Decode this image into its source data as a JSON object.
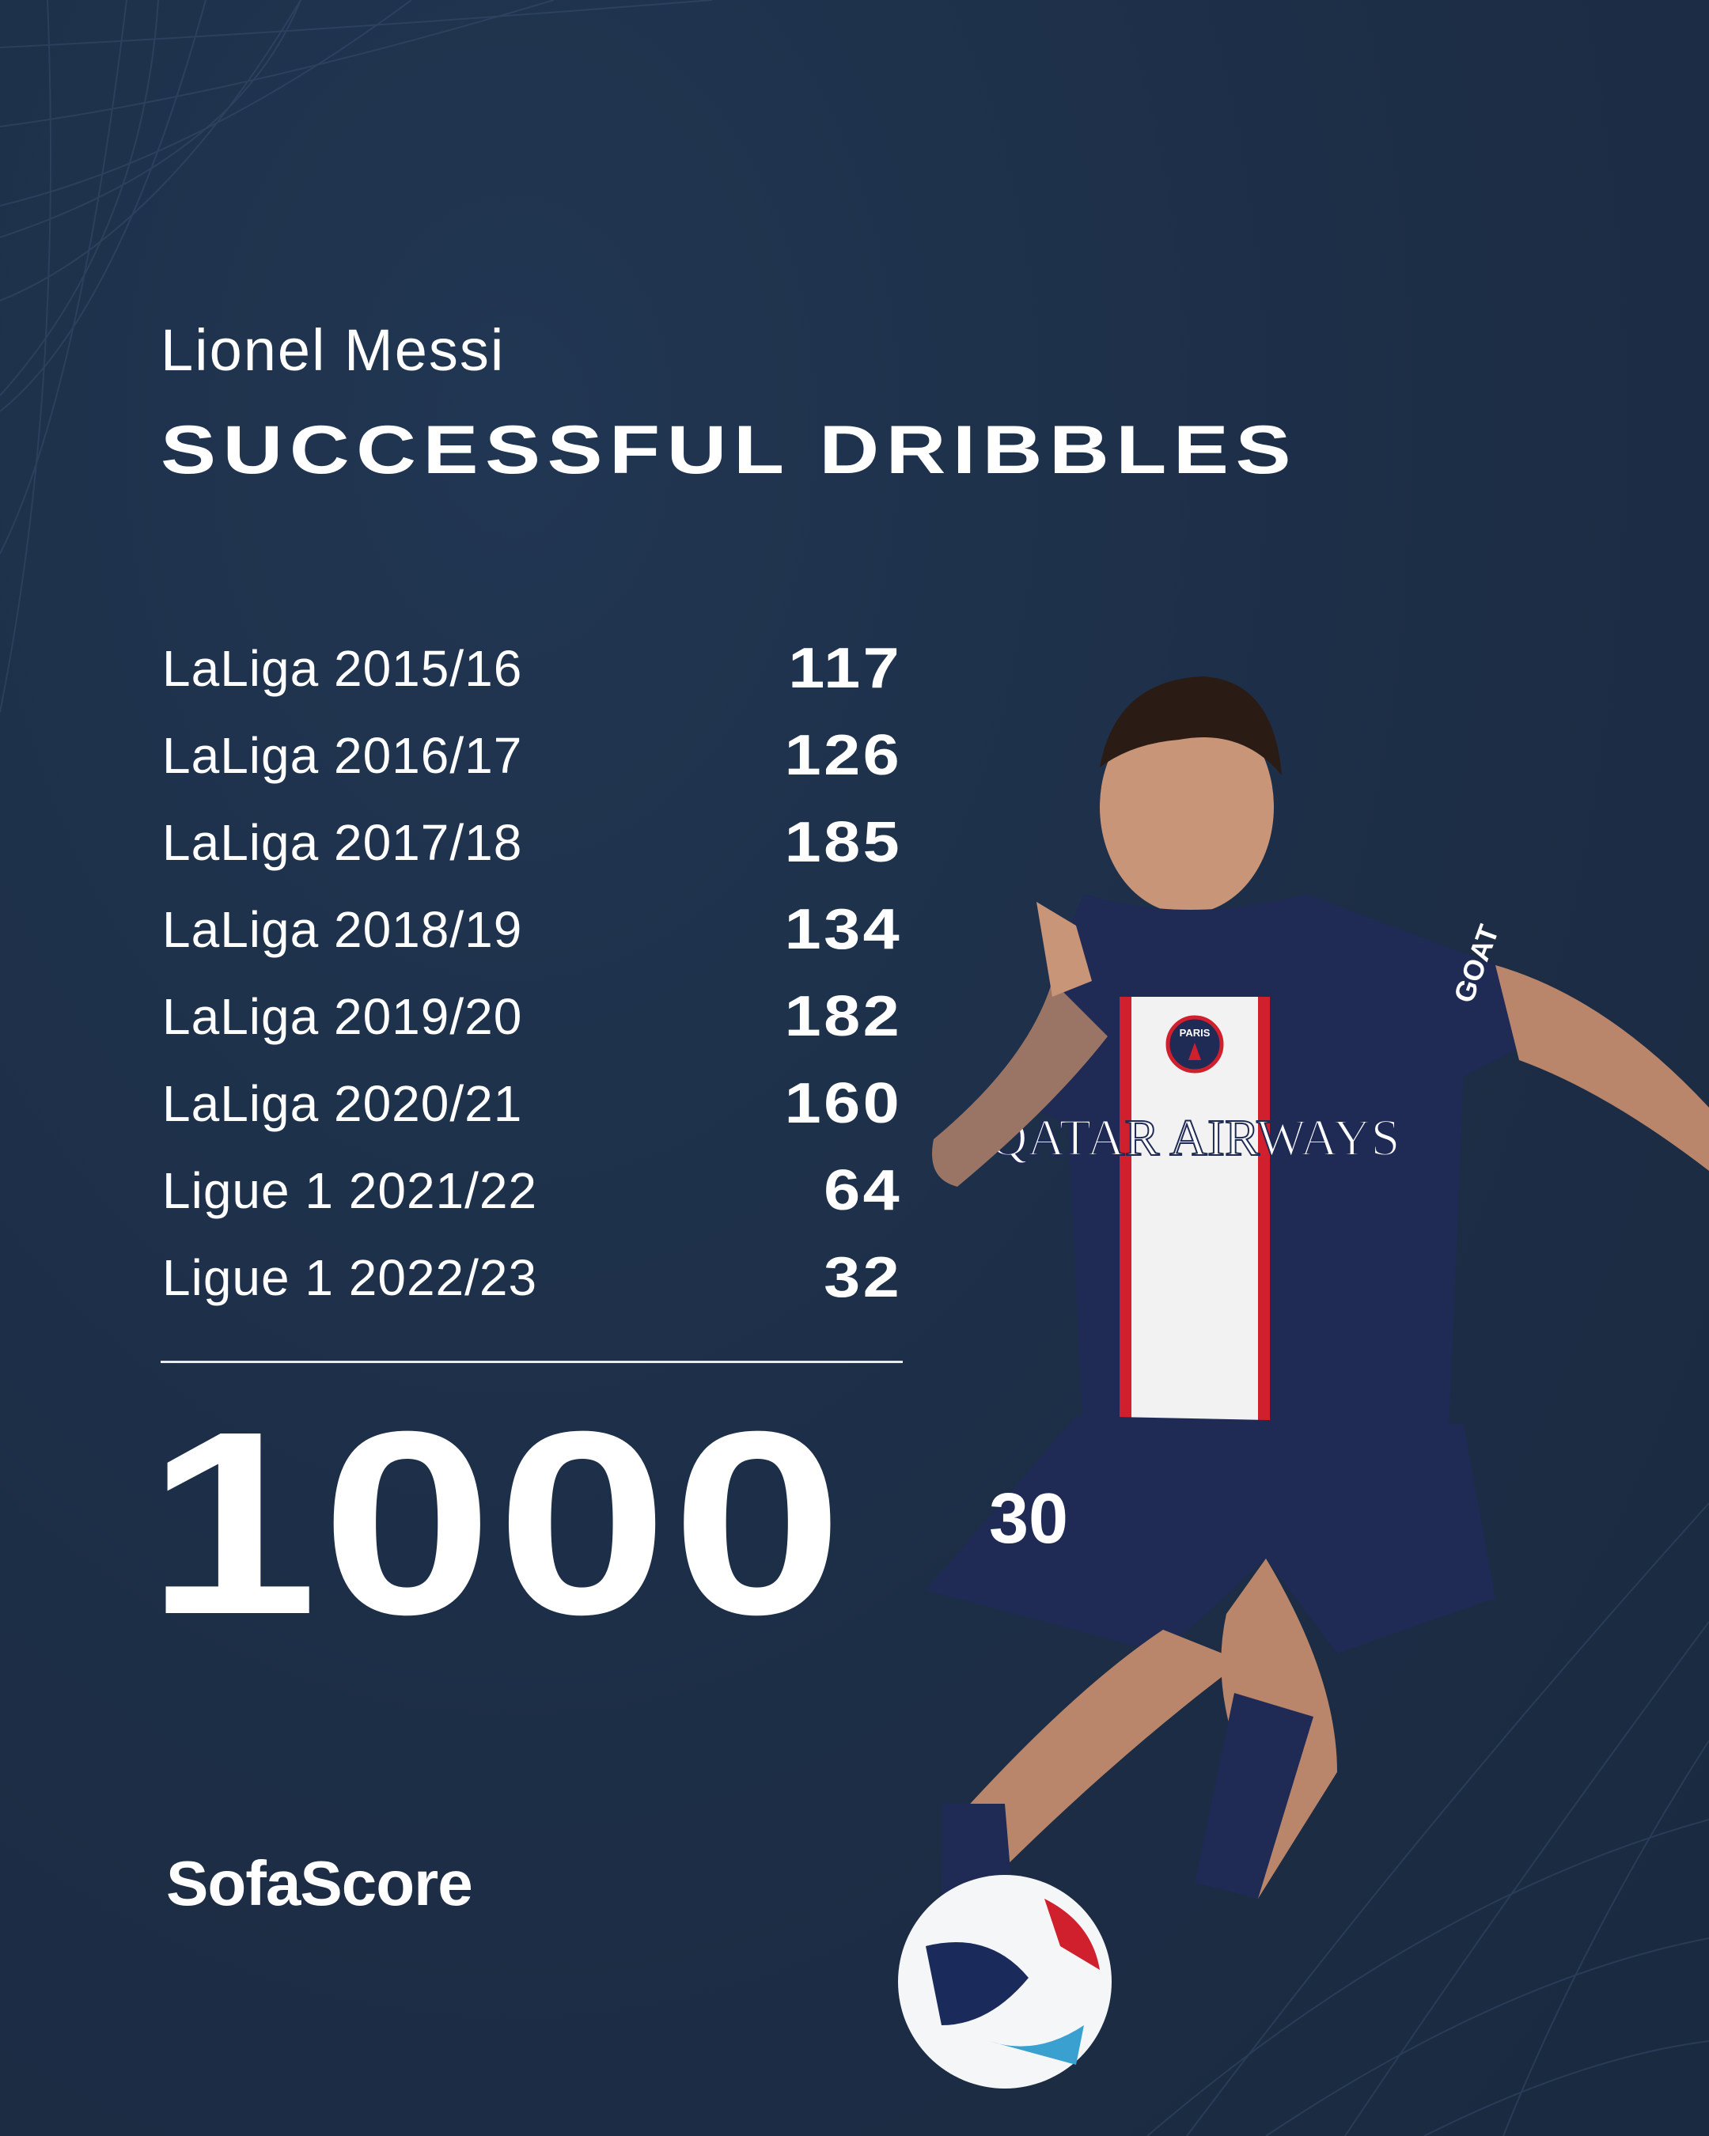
{
  "header": {
    "player_name": "Lionel Messi",
    "stat_title": "SUCCESSFUL DRIBBLES"
  },
  "seasons": [
    {
      "label": "LaLiga 2015/16",
      "value": "117"
    },
    {
      "label": "LaLiga 2016/17",
      "value": "126"
    },
    {
      "label": "LaLiga 2017/18",
      "value": "185"
    },
    {
      "label": "LaLiga 2018/19",
      "value": "134"
    },
    {
      "label": "LaLiga 2019/20",
      "value": "182"
    },
    {
      "label": "LaLiga 2020/21",
      "value": "160"
    },
    {
      "label": "Ligue 1 2021/22",
      "value": "64"
    },
    {
      "label": "Ligue 1 2022/23",
      "value": "32"
    }
  ],
  "total": "1000",
  "brand": "SofaScore",
  "photo": {
    "sponsor": "QATAR AIRWAYS",
    "club": "PARIS",
    "sleeve": "GOAT",
    "number": "30"
  },
  "colors": {
    "background": "#1d2f48",
    "text": "#ffffff",
    "kit": "#1f2a55",
    "kit_red": "#d0202e"
  }
}
